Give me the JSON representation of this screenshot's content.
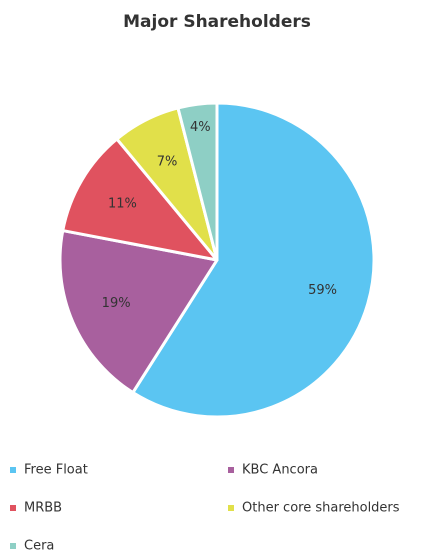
{
  "chart_data": {
    "type": "pie",
    "title": "Major Shareholders",
    "categories": [
      "Free Float",
      "KBC Ancora",
      "MRBB",
      "Other core shareholders",
      "Cera"
    ],
    "values": [
      59,
      19,
      11,
      7,
      4
    ],
    "value_labels": [
      "59%",
      "19%",
      "11%",
      "7%",
      "4%"
    ],
    "colors": [
      "#5bc5f2",
      "#a8609e",
      "#e0525f",
      "#e1e04a",
      "#8ecfc5"
    ],
    "legend": "bottom"
  }
}
